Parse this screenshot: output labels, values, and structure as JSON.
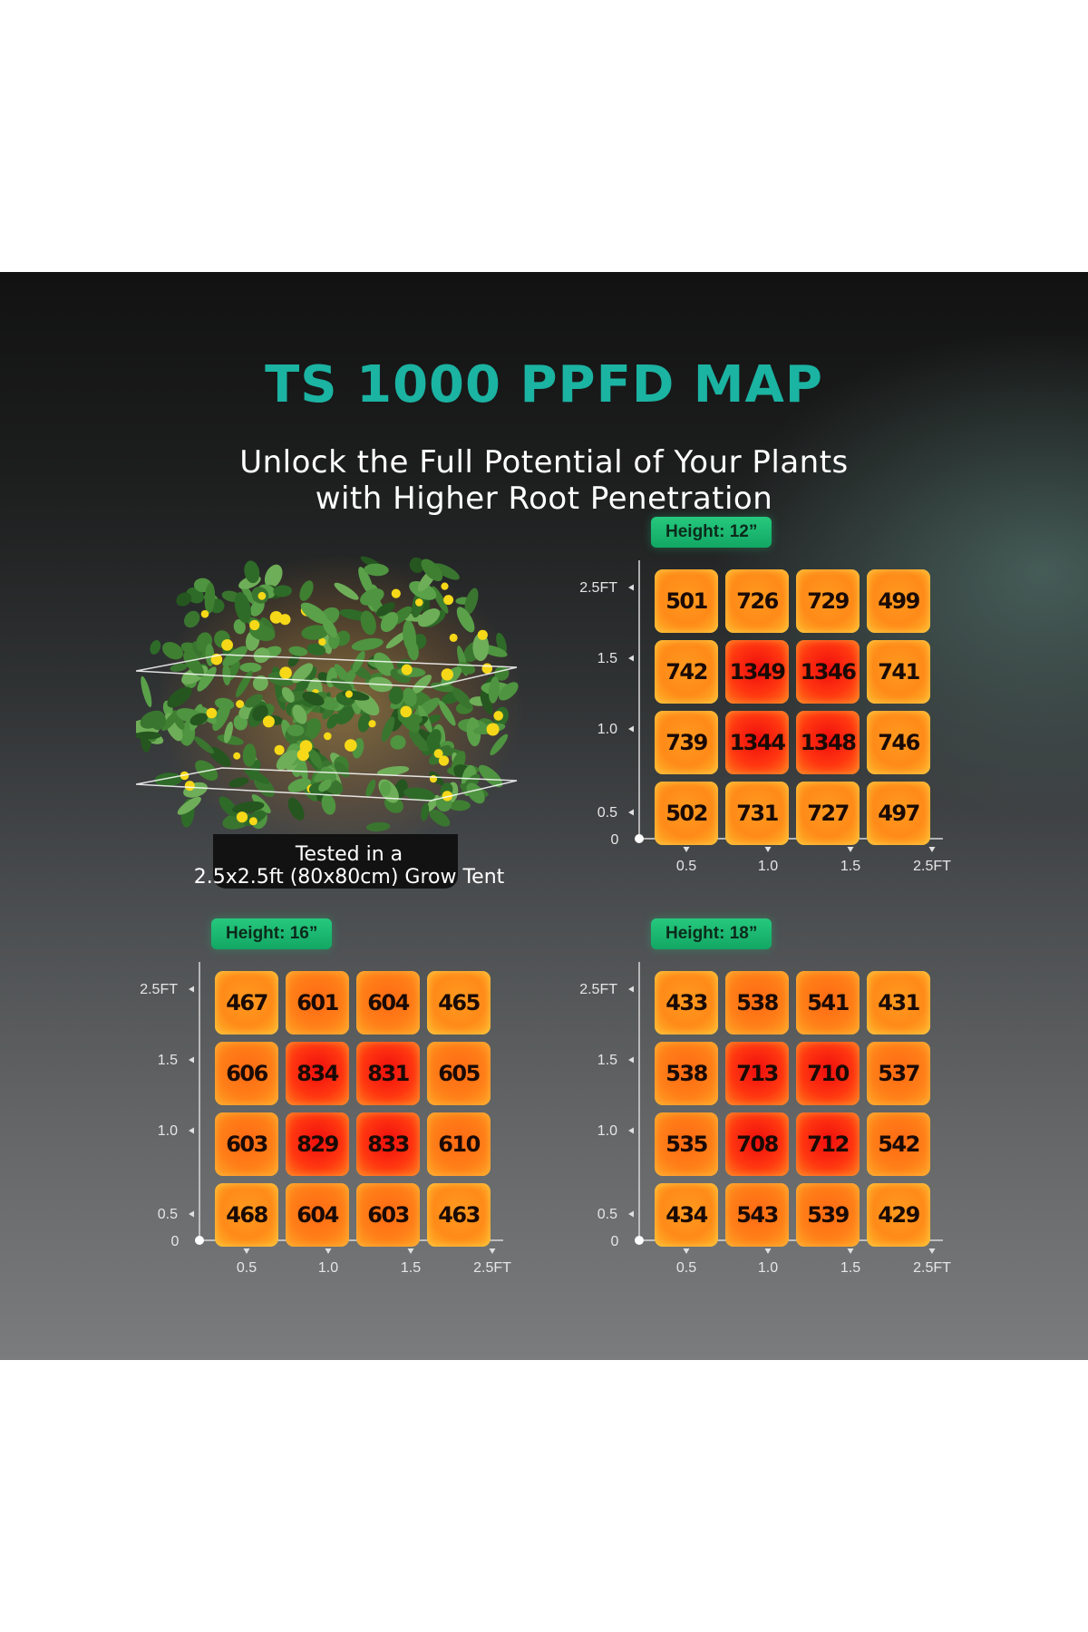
{
  "title": "TS 1000 PPFD MAP",
  "subtitle_lines": [
    "Unlock the Full Potential of Your Plants",
    "with Higher Root Penetration"
  ],
  "plant_caption_lines": [
    "Tested in a",
    "2.5x2.5ft (80x80cm) Grow Tent"
  ],
  "colors": {
    "title": "#1bb3a2",
    "badge": "#1fb872",
    "cell_low": "#ff9a1f",
    "cell_mid": "#ff6a14",
    "cell_high": "#f00e0e"
  },
  "chart_data": [
    {
      "type": "heatmap",
      "title": "Height: 12”",
      "x_ticks": [
        "0.5",
        "1.0",
        "1.5",
        "2.5FT"
      ],
      "y_ticks": [
        "2.5FT",
        "1.5",
        "1.0",
        "0.5"
      ],
      "origin_label": "0",
      "values": [
        [
          501,
          726,
          729,
          499
        ],
        [
          742,
          1349,
          1346,
          741
        ],
        [
          739,
          1344,
          1348,
          746
        ],
        [
          502,
          731,
          727,
          497
        ]
      ]
    },
    {
      "type": "heatmap",
      "title": "Height: 16”",
      "x_ticks": [
        "0.5",
        "1.0",
        "1.5",
        "2.5FT"
      ],
      "y_ticks": [
        "2.5FT",
        "1.5",
        "1.0",
        "0.5"
      ],
      "origin_label": "0",
      "values": [
        [
          467,
          601,
          604,
          465
        ],
        [
          606,
          834,
          831,
          605
        ],
        [
          603,
          829,
          833,
          610
        ],
        [
          468,
          604,
          603,
          463
        ]
      ]
    },
    {
      "type": "heatmap",
      "title": "Height: 18”",
      "x_ticks": [
        "0.5",
        "1.0",
        "1.5",
        "2.5FT"
      ],
      "y_ticks": [
        "2.5FT",
        "1.5",
        "1.0",
        "0.5"
      ],
      "origin_label": "0",
      "values": [
        [
          433,
          538,
          541,
          431
        ],
        [
          538,
          713,
          710,
          537
        ],
        [
          535,
          708,
          712,
          542
        ],
        [
          434,
          543,
          539,
          429
        ]
      ]
    }
  ]
}
